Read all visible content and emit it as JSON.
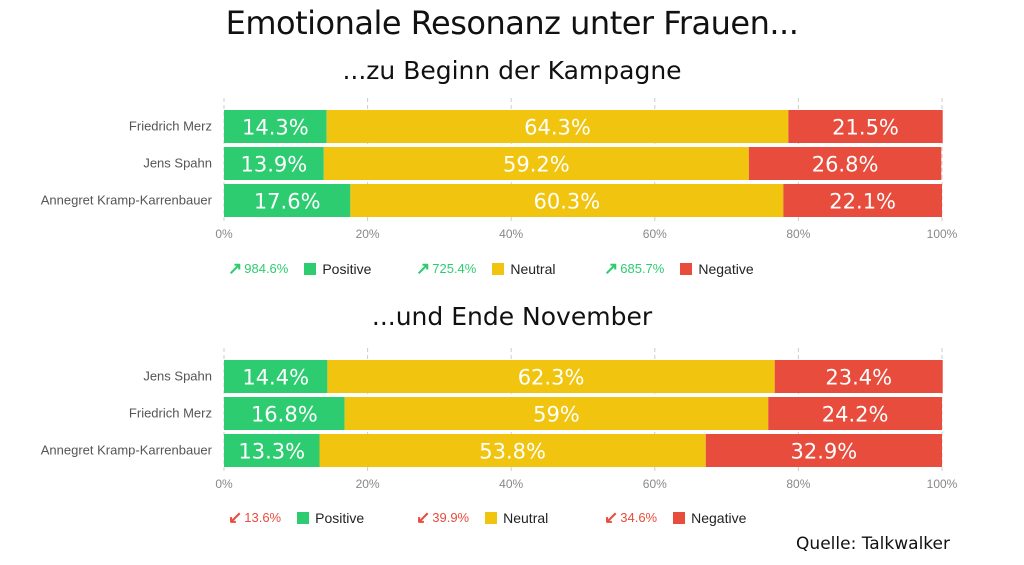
{
  "title": "Emotionale Resonanz unter Frauen...",
  "source": "Quelle: Talkwalker",
  "colors": {
    "Positive": "#2ecc71",
    "Neutral": "#f1c40f",
    "Negative": "#e74c3c"
  },
  "chart_data": [
    {
      "type": "bar",
      "orientation": "horizontal",
      "stacked": true,
      "title": "...zu Beginn der Kampagne",
      "categories": [
        "Friedrich Merz",
        "Jens Spahn",
        "Annegret Kramp-Karrenbauer"
      ],
      "series": [
        {
          "name": "Positive",
          "values": [
            14.3,
            13.9,
            17.6
          ]
        },
        {
          "name": "Neutral",
          "values": [
            64.3,
            59.2,
            60.3
          ]
        },
        {
          "name": "Negative",
          "values": [
            21.5,
            26.8,
            22.1
          ]
        }
      ],
      "xlim": [
        0,
        100
      ],
      "xticks": [
        "0%",
        "20%",
        "40%",
        "60%",
        "80%",
        "100%"
      ],
      "grid": true,
      "legend": [
        {
          "delta": "984.6%",
          "direction": "up",
          "name": "Positive"
        },
        {
          "delta": "725.4%",
          "direction": "up",
          "name": "Neutral"
        },
        {
          "delta": "685.7%",
          "direction": "up",
          "name": "Negative"
        }
      ]
    },
    {
      "type": "bar",
      "orientation": "horizontal",
      "stacked": true,
      "title": "...und Ende November",
      "categories": [
        "Jens Spahn",
        "Friedrich Merz",
        "Annegret Kramp-Karrenbauer"
      ],
      "series": [
        {
          "name": "Positive",
          "values": [
            14.4,
            16.8,
            13.3
          ]
        },
        {
          "name": "Neutral",
          "values": [
            62.3,
            59,
            53.8
          ]
        },
        {
          "name": "Negative",
          "values": [
            23.4,
            24.2,
            32.9
          ]
        }
      ],
      "xlim": [
        0,
        100
      ],
      "xticks": [
        "0%",
        "20%",
        "40%",
        "60%",
        "80%",
        "100%"
      ],
      "grid": true,
      "legend": [
        {
          "delta": "13.6%",
          "direction": "down",
          "name": "Positive"
        },
        {
          "delta": "39.9%",
          "direction": "down",
          "name": "Neutral"
        },
        {
          "delta": "34.6%",
          "direction": "down",
          "name": "Negative"
        }
      ]
    }
  ]
}
